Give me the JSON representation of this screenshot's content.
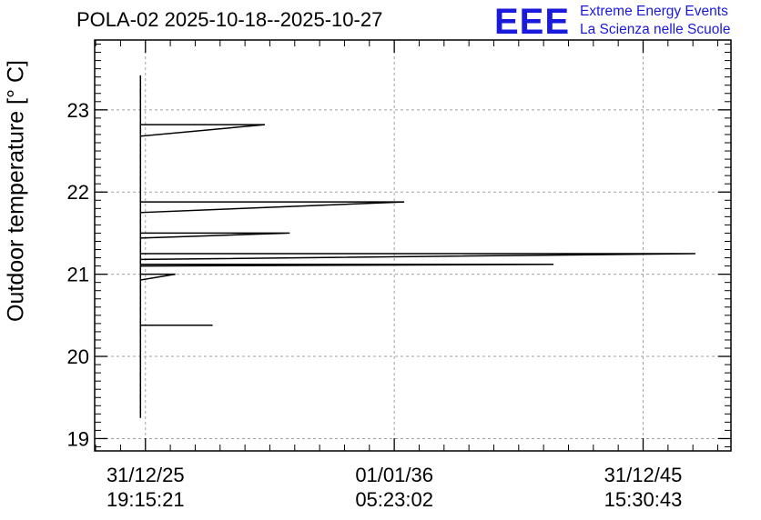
{
  "title": "POLA-02 2025-10-18--2025-10-27",
  "logo": {
    "mark": "EEE",
    "line1": "Extreme Energy Events",
    "line2": "La Scienza nelle Scuole",
    "color": "#1a1adc"
  },
  "chart_data": {
    "type": "line",
    "title": "POLA-02 2025-10-18--2025-10-27",
    "xlabel": "",
    "ylabel": "Outdoor temperature [° C]",
    "ylim": [
      18.85,
      23.85
    ],
    "grid": true,
    "y_ticks": [
      19,
      20,
      21,
      22,
      23
    ],
    "x_ticks": [
      {
        "line1": "31/12/25",
        "line2": "19:15:21"
      },
      {
        "line1": "01/01/36",
        "line2": "05:23:02"
      },
      {
        "line1": "31/12/45",
        "line2": "15:30:43"
      }
    ],
    "x_tick_values": [
      0,
      10,
      20
    ],
    "xlim": [
      -2.04,
      23.53
    ],
    "series": [
      {
        "values": [
          [
            -0.2,
            23.42
          ],
          [
            -0.2,
            19.25
          ],
          [
            -0.2,
            22.82
          ],
          [
            4.8,
            22.82
          ],
          [
            -0.2,
            22.68
          ],
          [
            -0.2,
            21.88
          ],
          [
            10.4,
            21.88
          ],
          [
            -0.2,
            21.75
          ],
          [
            -0.2,
            21.5
          ],
          [
            5.8,
            21.5
          ],
          [
            -0.2,
            21.44
          ],
          [
            -0.2,
            21.25
          ],
          [
            22.1,
            21.25
          ],
          [
            -0.2,
            21.18
          ],
          [
            -0.2,
            21.12
          ],
          [
            16.4,
            21.12
          ],
          [
            -0.2,
            21.1
          ],
          [
            -0.2,
            21.0
          ],
          [
            1.2,
            21.0
          ],
          [
            -0.2,
            20.93
          ],
          [
            -0.2,
            20.38
          ],
          [
            2.7,
            20.38
          ]
        ]
      }
    ]
  }
}
